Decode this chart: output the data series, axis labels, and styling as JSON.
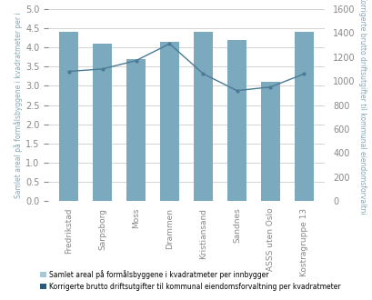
{
  "categories": [
    "Fredrikstad",
    "Sarpsborg",
    "Moss",
    "Drammen",
    "Kristiansand",
    "Sandnes",
    "ASSS uten Oslo",
    "Kostragruppe 13"
  ],
  "bar_values": [
    4.4,
    4.1,
    3.7,
    4.15,
    4.4,
    4.2,
    3.1,
    4.4
  ],
  "line_values": [
    1080,
    1100,
    1170,
    1310,
    1060,
    920,
    950,
    1060
  ],
  "bar_color": "#7baabe",
  "line_color": "#4a7a96",
  "left_ylim": [
    0,
    5.0
  ],
  "left_yticks": [
    0.0,
    0.5,
    1.0,
    1.5,
    2.0,
    2.5,
    3.0,
    3.5,
    4.0,
    4.5,
    5.0
  ],
  "right_ylim": [
    0,
    1600
  ],
  "right_yticks": [
    0,
    200,
    400,
    600,
    800,
    1000,
    1200,
    1400,
    1600
  ],
  "left_ylabel_full": "Samlet areal på formålsbyggene i kvadratmeter per i",
  "right_ylabel_full": "Korrigerte brutto driftsutgifter til kommunal eiendomsforvaltni",
  "legend_bar": "Samlet areal på formålsbyggene i kvadratmeter per innbygger",
  "legend_line": "Korrigerte brutto driftsutgifter til kommunal eiendomsforvaltning per kvadratmeter",
  "background_color": "#ffffff",
  "grid_color": "#cccccc",
  "label_color": "#7baabe",
  "tick_color": "#888888",
  "legend_bar_color": "#a8c8d8",
  "legend_line_color": "#2a5a78"
}
